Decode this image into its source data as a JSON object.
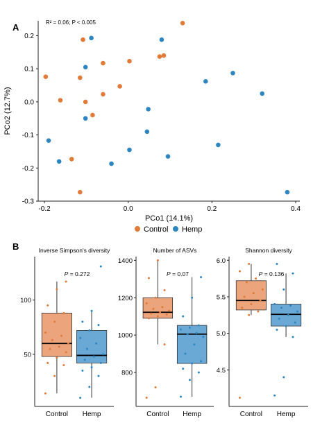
{
  "panel_a": {
    "label": "A",
    "annotation": "R² = 0.06; P < 0.005",
    "legend": {
      "control": "Control",
      "hemp": "Hemp"
    }
  },
  "panel_b": {
    "label": "B"
  },
  "colors": {
    "control": "#E07B39",
    "hemp": "#2E86C1",
    "control_box": "#EBA47C",
    "hemp_box": "#6AA8D6"
  },
  "chart_data": [
    {
      "type": "scatter",
      "title": "",
      "xlabel": "PCo1 (14.1%)",
      "ylabel": "PCo2 (12.7%)",
      "xlim": [
        -0.215,
        0.41
      ],
      "ylim": [
        -0.3,
        0.245
      ],
      "xticks": [
        -0.2,
        0.0,
        0.2,
        0.4
      ],
      "xtick_labels": [
        "-0.2",
        "0.0",
        "0.2",
        "0.4"
      ],
      "yticks": [
        -0.3,
        -0.2,
        -0.1,
        0.0,
        0.1,
        0.2
      ],
      "ytick_labels": [
        "-0.3",
        "-0.2",
        "-0.1",
        "0.0",
        "0.1",
        "0.2"
      ],
      "legend_position": "bottom",
      "grid": false,
      "series": [
        {
          "name": "Control",
          "color": "#E07B39",
          "points": [
            [
              -0.197,
              0.076
            ],
            [
              -0.162,
              0.005
            ],
            [
              -0.135,
              -0.173
            ],
            [
              -0.115,
              -0.273
            ],
            [
              -0.115,
              0.073
            ],
            [
              -0.108,
              0.188
            ],
            [
              -0.102,
              0.0
            ],
            [
              -0.085,
              -0.04
            ],
            [
              -0.06,
              0.117
            ],
            [
              -0.06,
              0.023
            ],
            [
              -0.02,
              0.047
            ],
            [
              0.003,
              0.123
            ],
            [
              0.075,
              0.137
            ],
            [
              0.085,
              0.14
            ],
            [
              0.13,
              0.238
            ]
          ]
        },
        {
          "name": "Hemp",
          "color": "#2E86C1",
          "points": [
            [
              -0.19,
              -0.117
            ],
            [
              -0.165,
              -0.18
            ],
            [
              -0.102,
              0.105
            ],
            [
              -0.102,
              -0.05
            ],
            [
              -0.088,
              0.193
            ],
            [
              -0.04,
              -0.187
            ],
            [
              0.003,
              -0.145
            ],
            [
              0.045,
              -0.09
            ],
            [
              0.048,
              -0.022
            ],
            [
              0.08,
              0.188
            ],
            [
              0.095,
              -0.165
            ],
            [
              0.185,
              0.062
            ],
            [
              0.215,
              -0.13
            ],
            [
              0.25,
              0.087
            ],
            [
              0.32,
              0.025
            ],
            [
              0.38,
              -0.273
            ]
          ]
        }
      ]
    },
    {
      "type": "box",
      "title": "Inverse Simpson's diversity",
      "annotation_p": "P",
      "annotation_val": " = 0.272",
      "categories": [
        "Control",
        "Hemp"
      ],
      "yticks": [
        50,
        100
      ],
      "ylim": [
        2,
        140
      ],
      "boxes": [
        {
          "name": "Control",
          "min": 14,
          "q1": 48,
          "median": 60,
          "q3": 88,
          "max": 117
        },
        {
          "name": "Hemp",
          "min": 10,
          "q1": 42,
          "median": 49,
          "q3": 72,
          "max": 90
        }
      ],
      "points": [
        [
          14,
          30,
          40,
          42,
          47,
          52,
          55,
          57,
          60,
          63,
          67,
          70,
          80,
          88,
          95,
          110,
          117
        ],
        [
          10,
          20,
          30,
          35,
          38,
          42,
          45,
          48,
          50,
          55,
          60,
          65,
          72,
          77,
          80,
          90,
          131
        ]
      ]
    },
    {
      "type": "box",
      "title": "Number of ASVs",
      "annotation_p": "P",
      "annotation_val": " = 0.07",
      "categories": [
        "Control",
        "Hemp"
      ],
      "yticks": [
        800,
        1000,
        1200,
        1400
      ],
      "yticks_shown": [
        "800",
        "1000",
        "1200",
        "1400"
      ],
      "ylim": [
        618,
        1420
      ],
      "boxes": [
        {
          "name": "Control",
          "min": 950,
          "q1": 1090,
          "median": 1122,
          "q3": 1200,
          "max": 1400
        },
        {
          "name": "Hemp",
          "min": 670,
          "q1": 848,
          "median": 1005,
          "q3": 1052,
          "max": 1310
        }
      ],
      "points": [
        [
          665,
          720,
          950,
          1090,
          1100,
          1110,
          1115,
          1122,
          1130,
          1140,
          1150,
          1170,
          1200,
          1240,
          1305,
          1400
        ],
        [
          670,
          760,
          800,
          820,
          848,
          860,
          900,
          950,
          990,
          1005,
          1010,
          1030,
          1040,
          1052,
          1100,
          1200,
          1310
        ]
      ]
    },
    {
      "type": "box",
      "title": "Shannon diversity",
      "annotation_p": "P",
      "annotation_val": " = 0.136",
      "categories": [
        "Control",
        "Hemp"
      ],
      "yticks": [
        4.5,
        5.0,
        5.5,
        6.0
      ],
      "yticks_shown": [
        "4.5",
        "5.0",
        "5.5",
        "6.0"
      ],
      "ylim": [
        4.0,
        6.05
      ],
      "boxes": [
        {
          "name": "Control",
          "min": 5.25,
          "q1": 5.32,
          "median": 5.45,
          "q3": 5.72,
          "max": 5.95
        },
        {
          "name": "Hemp",
          "min": 4.95,
          "q1": 5.1,
          "median": 5.26,
          "q3": 5.4,
          "max": 5.82
        }
      ],
      "points": [
        [
          4.12,
          5.25,
          5.3,
          5.35,
          5.4,
          5.45,
          5.5,
          5.55,
          5.6,
          5.7,
          5.75,
          5.85,
          5.95
        ],
        [
          4.15,
          4.4,
          4.95,
          5.05,
          5.1,
          5.15,
          5.2,
          5.25,
          5.3,
          5.35,
          5.38,
          5.4,
          5.6,
          5.82,
          5.95
        ]
      ]
    }
  ]
}
